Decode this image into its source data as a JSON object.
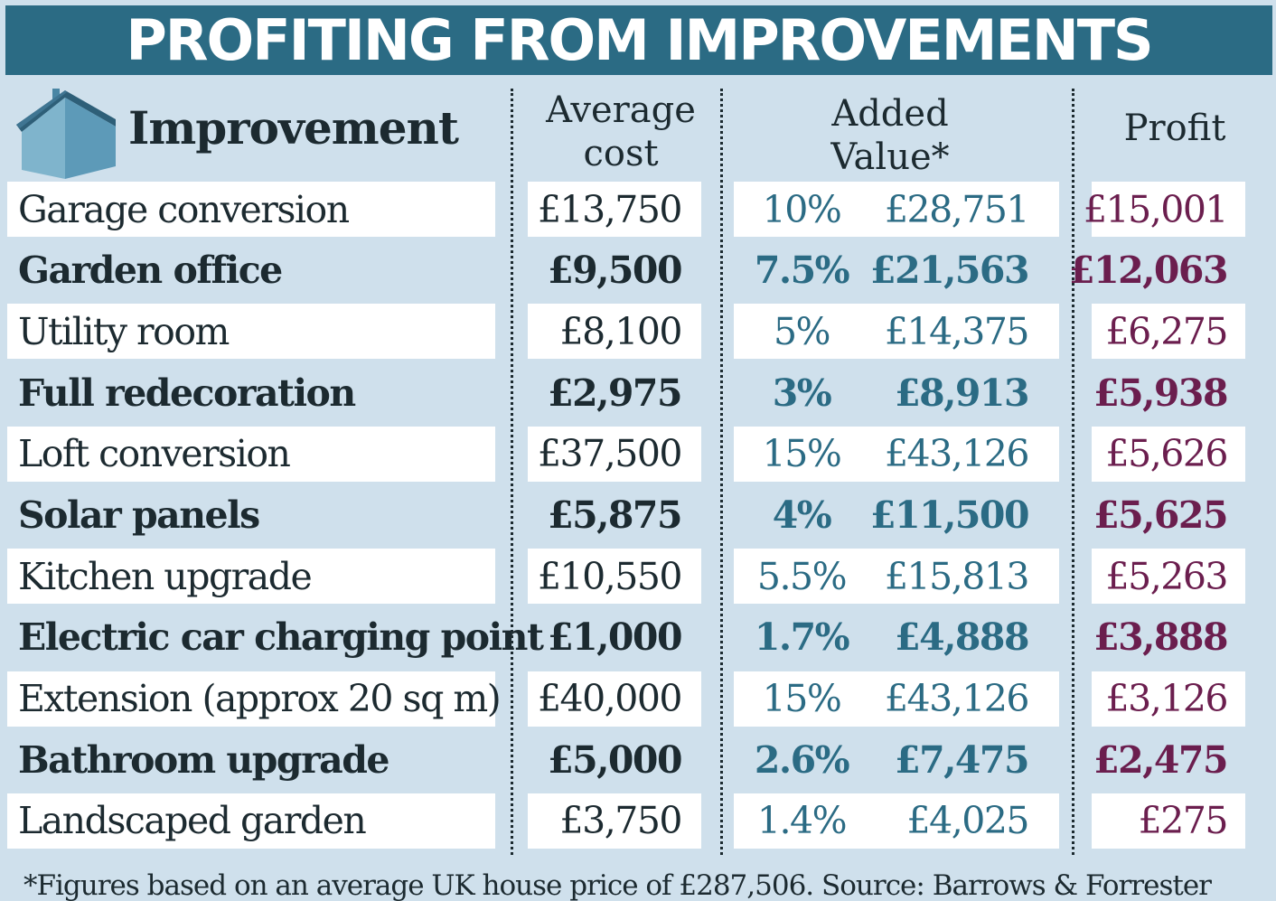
{
  "title": "PROFITING FROM IMPROVEMENTS",
  "colors": {
    "background": "#cfe0ec",
    "title_bar": "#2b6b84",
    "added_value_text": "#2b6b84",
    "profit_text": "#6b1e4e",
    "row_highlight": "#ffffff"
  },
  "icon": "house-icon",
  "headers": {
    "improvement": "Improvement",
    "cost_line1": "Average",
    "cost_line2": "cost",
    "added_line1": "Added",
    "added_line2": "Value*",
    "profit": "Profit"
  },
  "chart_data": {
    "type": "table",
    "title": "PROFITING FROM IMPROVEMENTS",
    "columns": [
      "Improvement",
      "Average cost",
      "Added Value* (%)",
      "Added Value* (£)",
      "Profit"
    ],
    "rows": [
      {
        "name": "Garage conversion",
        "cost": "£13,750",
        "pct": "10%",
        "value": "£28,751",
        "profit": "£15,001",
        "style": "plain"
      },
      {
        "name": "Garden office",
        "cost": "£9,500",
        "pct": "7.5%",
        "value": "£21,563",
        "profit": "£12,063",
        "style": "bold"
      },
      {
        "name": "Utility room",
        "cost": "£8,100",
        "pct": "5%",
        "value": "£14,375",
        "profit": "£6,275",
        "style": "plain"
      },
      {
        "name": "Full redecoration",
        "cost": "£2,975",
        "pct": "3%",
        "value": "£8,913",
        "profit": "£5,938",
        "style": "bold"
      },
      {
        "name": "Loft conversion",
        "cost": "£37,500",
        "pct": "15%",
        "value": "£43,126",
        "profit": "£5,626",
        "style": "plain"
      },
      {
        "name": "Solar panels",
        "cost": "£5,875",
        "pct": "4%",
        "value": "£11,500",
        "profit": "£5,625",
        "style": "bold"
      },
      {
        "name": "Kitchen upgrade",
        "cost": "£10,550",
        "pct": "5.5%",
        "value": "£15,813",
        "profit": "£5,263",
        "style": "plain"
      },
      {
        "name": "Electric car charging point",
        "cost": "£1,000",
        "pct": "1.7%",
        "value": "£4,888",
        "profit": "£3,888",
        "style": "bold"
      },
      {
        "name": "Extension (approx 20 sq m)",
        "cost": "£40,000",
        "pct": "15%",
        "value": "£43,126",
        "profit": "£3,126",
        "style": "plain"
      },
      {
        "name": "Bathroom upgrade",
        "cost": "£5,000",
        "pct": "2.6%",
        "value": "£7,475",
        "profit": "£2,475",
        "style": "bold"
      },
      {
        "name": "Landscaped garden",
        "cost": "£3,750",
        "pct": "1.4%",
        "value": "£4,025",
        "profit": "£275",
        "style": "plain"
      }
    ]
  },
  "footnote": "*Figures based on an average UK house price of £287,506. Source: Barrows & Forrester"
}
